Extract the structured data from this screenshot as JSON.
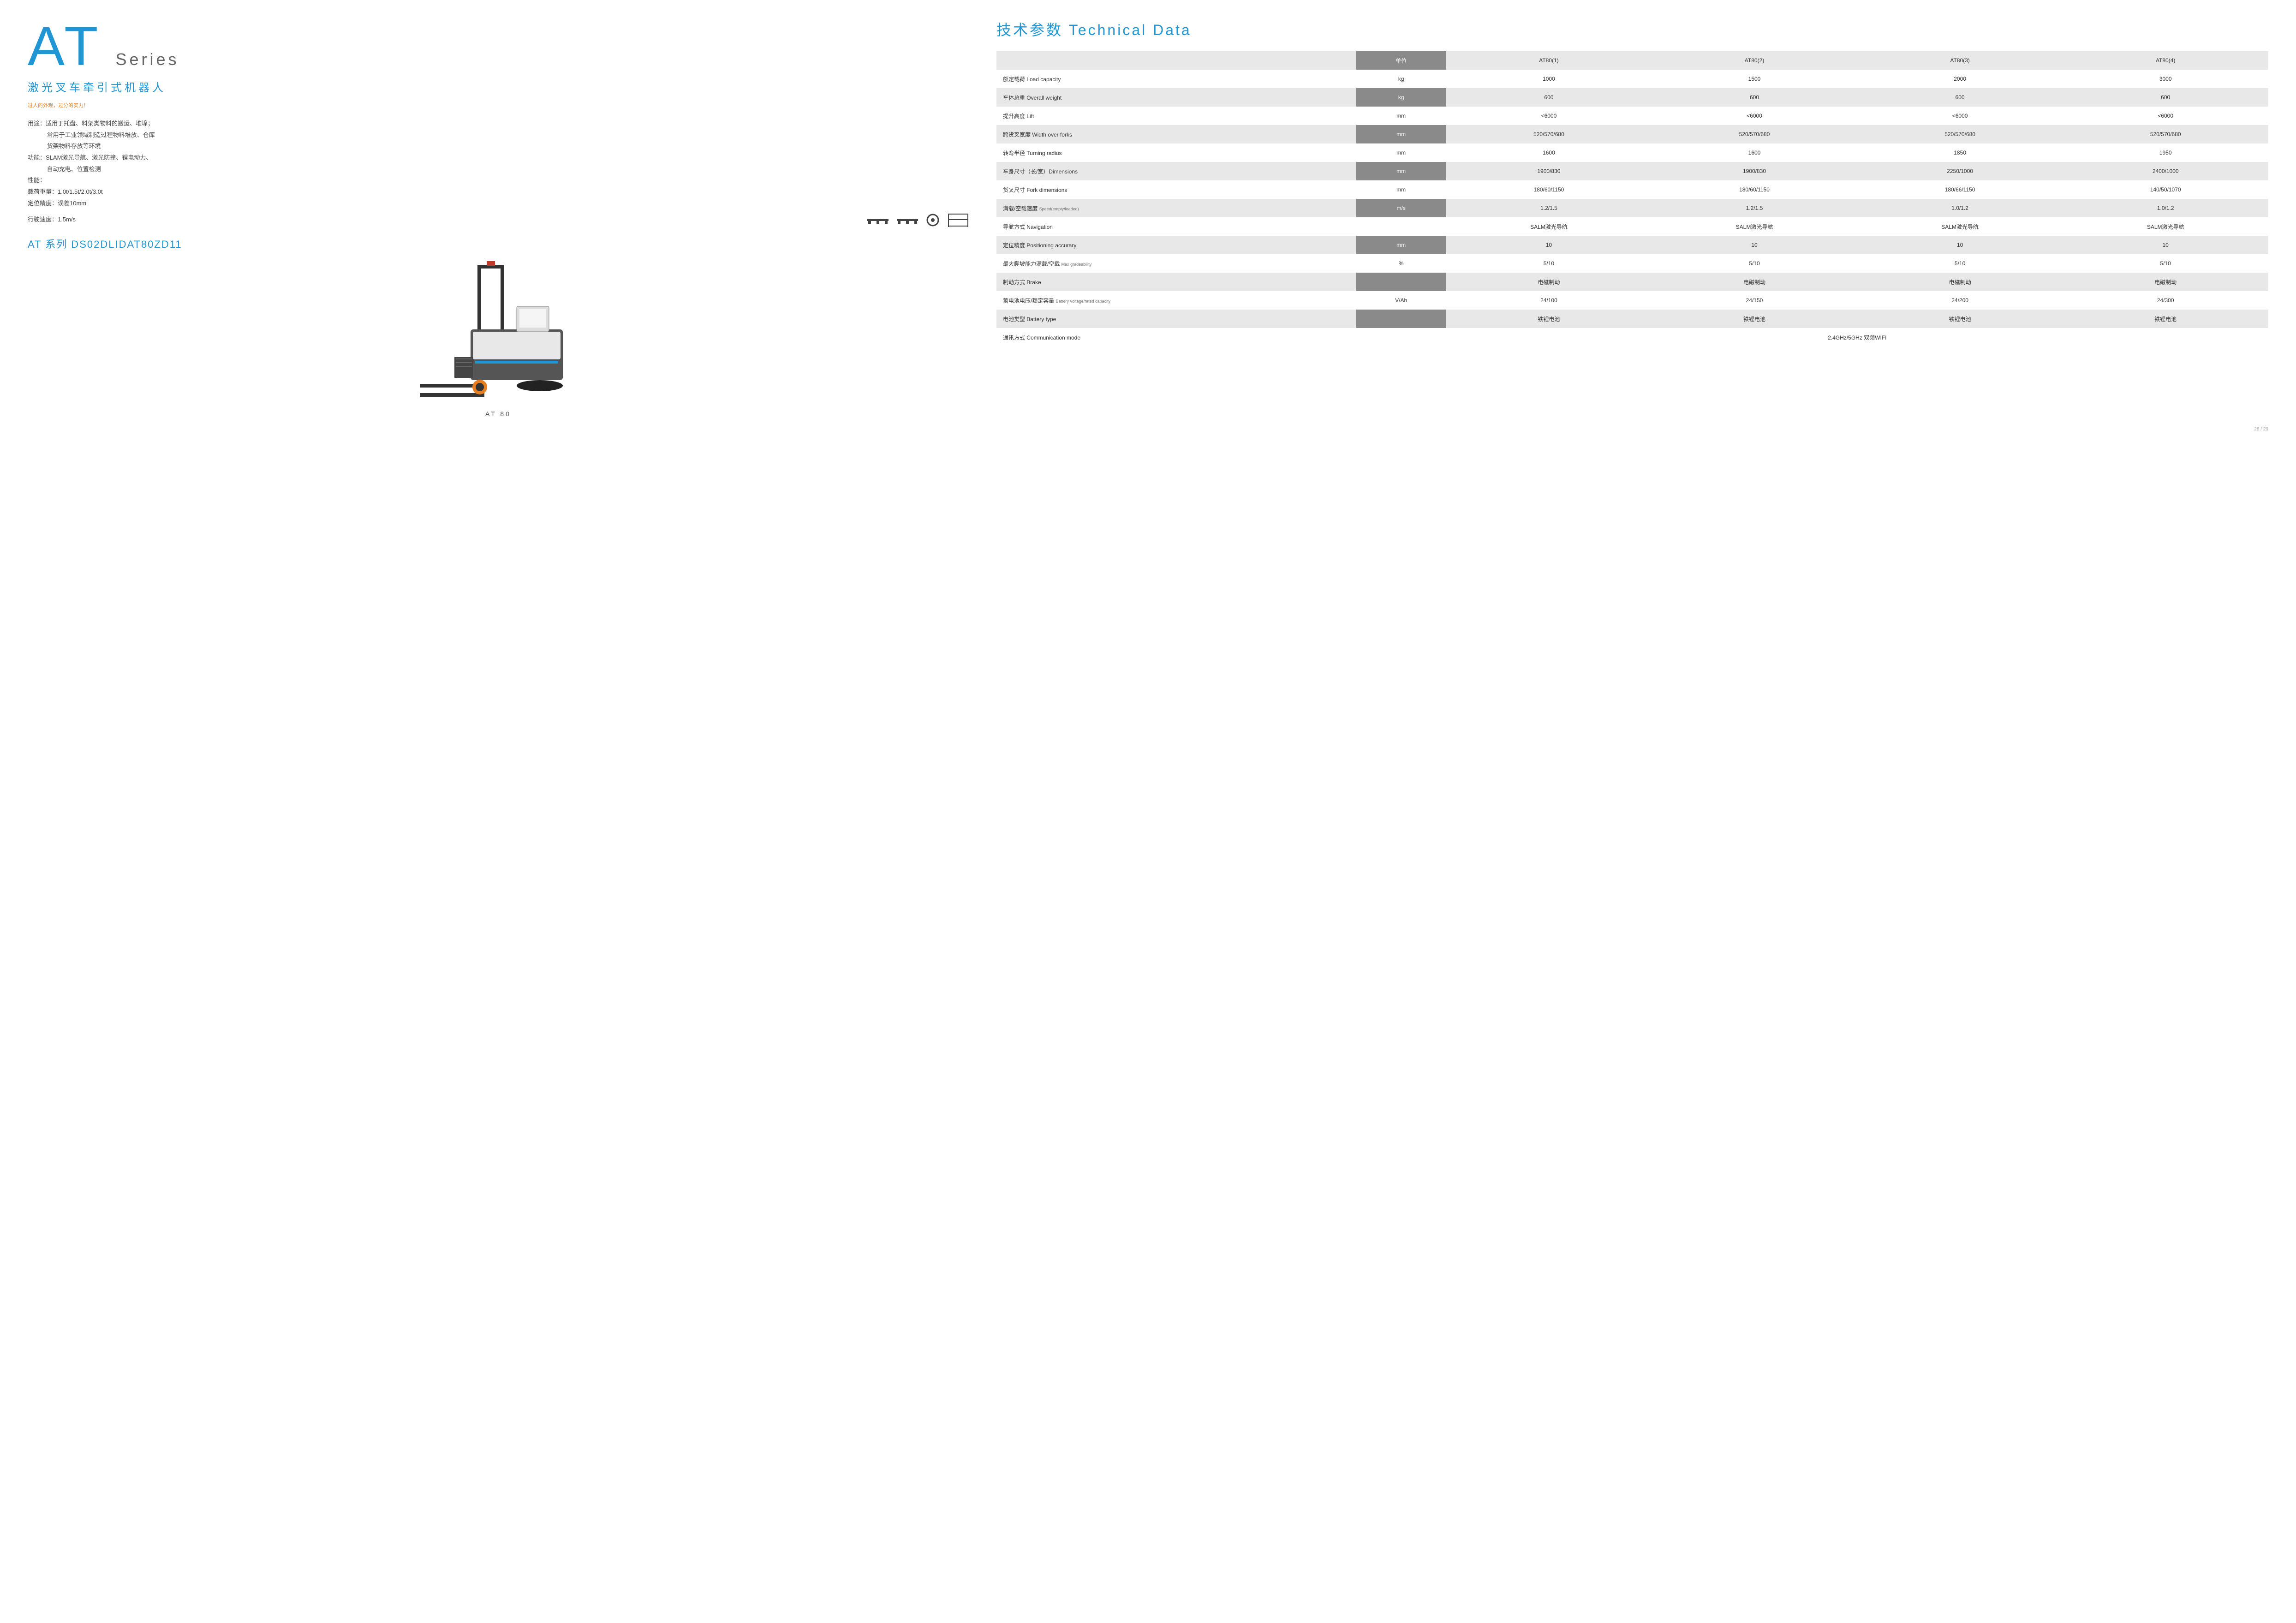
{
  "left": {
    "at": "AT",
    "series": "Series",
    "subtitle": "激光叉车牵引式机器人",
    "tagline": "过人的外观，过分的实力！",
    "use_label": "用途：",
    "use_text1": "适用于托盘、料架类物料的搬运、堆垛；",
    "use_text2": "常用于工业领域制造过程物料堆放、仓库",
    "use_text3": "货架物料存放等环境",
    "func_label": "功能：",
    "func_text1": "SLAM激光导航、激光防撞、锂电动力、",
    "func_text2": "自动充电、位置检测",
    "perf_label": "性能：",
    "load_label": "载荷重量：",
    "load_val": "1.0t/1.5t/2.0t/3.0t",
    "pos_label": "定位精度：",
    "pos_val": "误差10mm",
    "speed_label": "行驶速度：",
    "speed_val": "1.5m/s",
    "model": "AT 系列 DS02DLIDAT80ZD11",
    "product_label": "AT 80"
  },
  "right": {
    "title": "技术参数 Technical Data",
    "headers": [
      "单位",
      "AT80(1)",
      "AT80(2)",
      "AT80(3)",
      "AT80(4)"
    ],
    "rows": [
      {
        "name": "额定载荷 Load capacity",
        "unit": "kg",
        "vals": [
          "1000",
          "1500",
          "2000",
          "3000"
        ]
      },
      {
        "name": "车体总重 Overall weight",
        "unit": "kg",
        "vals": [
          "600",
          "600",
          "600",
          "600"
        ]
      },
      {
        "name": "提升高度 Lift",
        "unit": "mm",
        "vals": [
          "<6000",
          "<6000",
          "<6000",
          "<6000"
        ]
      },
      {
        "name": "跨货叉宽度 Width over forks",
        "unit": "mm",
        "vals": [
          "520/570/680",
          "520/570/680",
          "520/570/680",
          "520/570/680"
        ]
      },
      {
        "name": "转弯半径 Turning radius",
        "unit": "mm",
        "vals": [
          "1600",
          "1600",
          "1850",
          "1950"
        ]
      },
      {
        "name": "车身尺寸（长/宽）Dimensions",
        "unit": "mm",
        "vals": [
          "1900/830",
          "1900/830",
          "2250/1000",
          "2400/1000"
        ]
      },
      {
        "name": "货叉尺寸 Fork dimensions",
        "unit": "mm",
        "vals": [
          "180/60/1150",
          "180/60/1150",
          "180/66/1150",
          "140/50/1070"
        ]
      },
      {
        "name": "满载/空载速度",
        "sub": "Speed(empty/loaded)",
        "unit": "m/s",
        "vals": [
          "1.2/1.5",
          "1.2/1.5",
          "1.0/1.2",
          "1.0/1.2"
        ]
      },
      {
        "name": "导航方式 Navigation",
        "unit": "",
        "vals": [
          "SALM激光导航",
          "SALM激光导航",
          "SALM激光导航",
          "SALM激光导航"
        ]
      },
      {
        "name": "定位精度 Positioning accurary",
        "unit": "mm",
        "vals": [
          "10",
          "10",
          "10",
          "10"
        ]
      },
      {
        "name": "最大爬坡能力满载/空载",
        "sub": "Max gradeability",
        "unit": "%",
        "vals": [
          "5/10",
          "5/10",
          "5/10",
          "5/10"
        ]
      },
      {
        "name": "制动方式 Brake",
        "unit": "",
        "vals": [
          "电磁制动",
          "电磁制动",
          "电磁制动",
          "电磁制动"
        ]
      },
      {
        "name": "蓄电池电压/额定容量",
        "sub": "Battery voltage/rated capacity",
        "unit": "V/Ah",
        "vals": [
          "24/100",
          "24/150",
          "24/200",
          "24/300"
        ]
      },
      {
        "name": "电池类型 Battery type",
        "unit": "",
        "vals": [
          "铁锂电池",
          "铁锂电池",
          "铁锂电池",
          "铁锂电池"
        ]
      },
      {
        "name": "通讯方式 Communication mode",
        "unit": "",
        "span": "2.4GHz/5GHz 双频WIFI"
      }
    ]
  },
  "pagenum": "28 / 29"
}
